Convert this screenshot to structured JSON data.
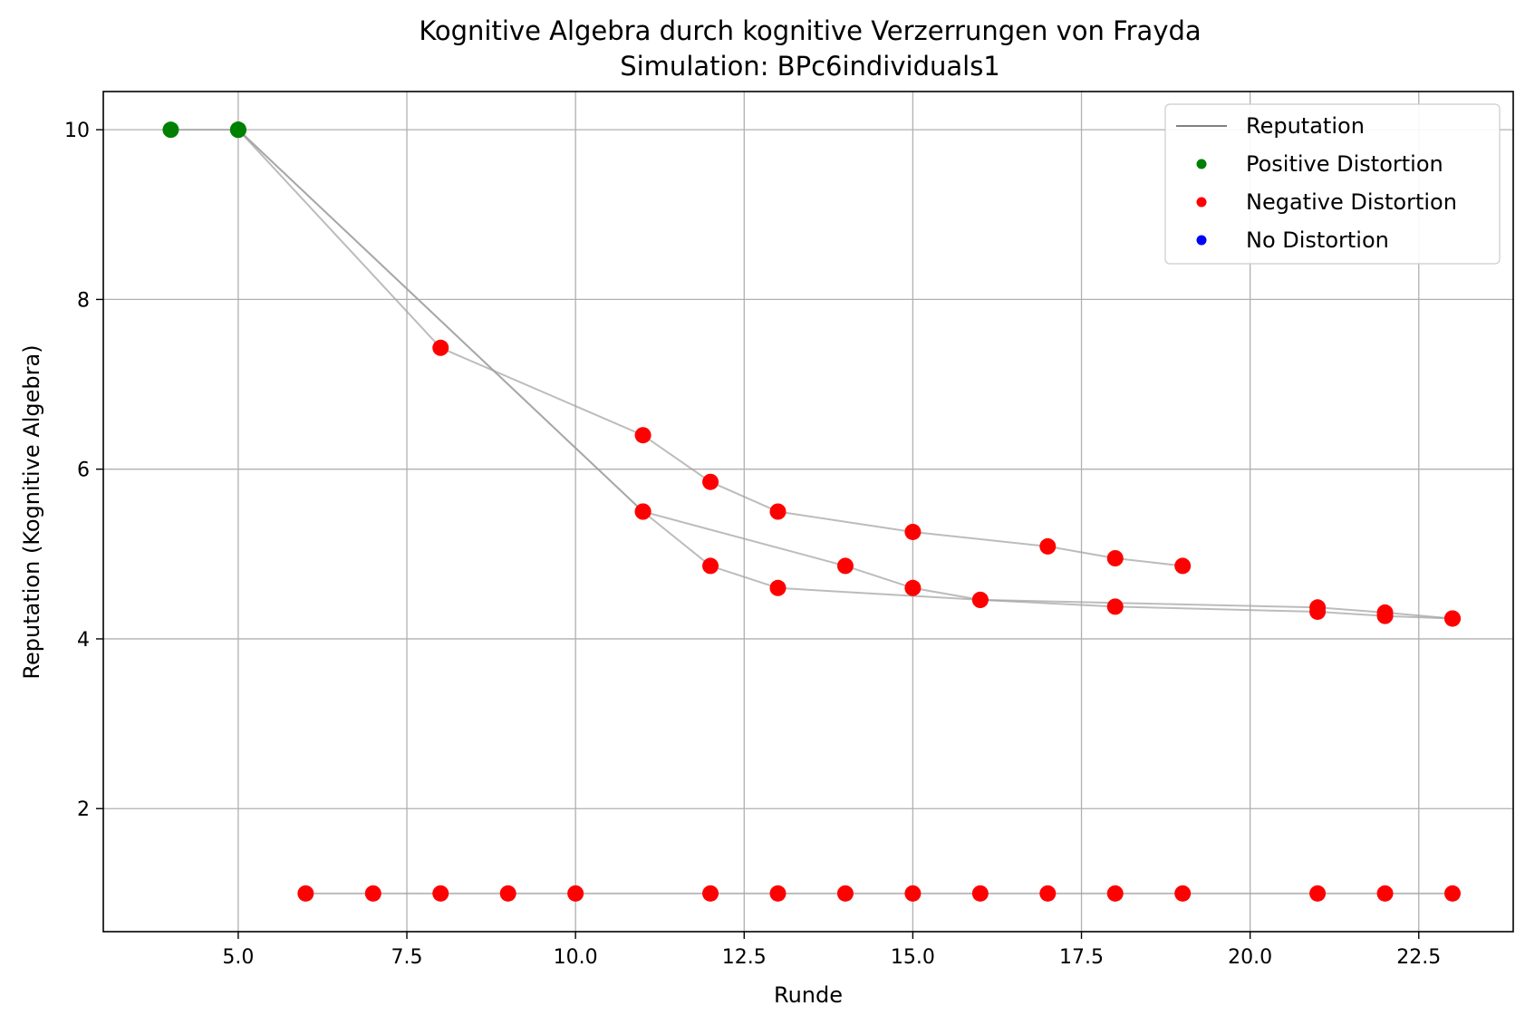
{
  "chart_data": {
    "type": "line",
    "title": "Kognitive Algebra durch kognitive Verzerrungen von Frayda",
    "subtitle": "Simulation: BPc6individuals1",
    "xlabel": "Runde",
    "ylabel": "Reputation (Kognitive Algebra)",
    "xlim": [
      3.0,
      23.9
    ],
    "ylim": [
      0.55,
      10.45
    ],
    "xticks": [
      5.0,
      7.5,
      10.0,
      12.5,
      15.0,
      17.5,
      20.0,
      22.5
    ],
    "xtick_labels": [
      "5.0",
      "7.5",
      "10.0",
      "12.5",
      "15.0",
      "17.5",
      "20.0",
      "22.5"
    ],
    "yticks": [
      2,
      4,
      6,
      8,
      10
    ],
    "ytick_labels": [
      "2",
      "4",
      "6",
      "8",
      "10"
    ],
    "grid": true,
    "legend_position": "top-right",
    "legend": [
      {
        "label": "Reputation",
        "kind": "line",
        "color": "#808080"
      },
      {
        "label": "Positive Distortion",
        "kind": "marker",
        "color": "#008000"
      },
      {
        "label": "Negative Distortion",
        "kind": "marker",
        "color": "#ff0000"
      },
      {
        "label": "No Distortion",
        "kind": "marker",
        "color": "#0000ff"
      }
    ],
    "colors": {
      "line": "#a0a0a0",
      "positive": "#008000",
      "negative": "#ff0000",
      "none": "#0000ff"
    },
    "series": [
      {
        "points": [
          {
            "x": 4,
            "y": 10.0,
            "d": "positive"
          },
          {
            "x": 5,
            "y": 10.0,
            "d": "positive"
          },
          {
            "x": 8,
            "y": 7.43,
            "d": "negative"
          },
          {
            "x": 11,
            "y": 6.4,
            "d": "negative"
          },
          {
            "x": 12,
            "y": 5.85,
            "d": "negative"
          },
          {
            "x": 13,
            "y": 5.5,
            "d": "negative"
          },
          {
            "x": 15,
            "y": 5.26,
            "d": "negative"
          },
          {
            "x": 17,
            "y": 5.09,
            "d": "negative"
          },
          {
            "x": 18,
            "y": 4.95,
            "d": "negative"
          },
          {
            "x": 19,
            "y": 4.86,
            "d": "negative"
          }
        ]
      },
      {
        "points": [
          {
            "x": 5,
            "y": 10.0,
            "d": "positive"
          },
          {
            "x": 11,
            "y": 5.5,
            "d": "negative"
          },
          {
            "x": 14,
            "y": 4.86,
            "d": "negative"
          },
          {
            "x": 15,
            "y": 4.6,
            "d": "negative"
          },
          {
            "x": 16,
            "y": 4.46,
            "d": "negative"
          },
          {
            "x": 21,
            "y": 4.37,
            "d": "negative"
          },
          {
            "x": 22,
            "y": 4.31,
            "d": "negative"
          },
          {
            "x": 23,
            "y": 4.24,
            "d": "negative"
          }
        ]
      },
      {
        "points": [
          {
            "x": 5,
            "y": 10.0,
            "d": "positive"
          },
          {
            "x": 11,
            "y": 5.5,
            "d": "negative"
          },
          {
            "x": 12,
            "y": 4.86,
            "d": "negative"
          },
          {
            "x": 13,
            "y": 4.6,
            "d": "negative"
          },
          {
            "x": 16,
            "y": 4.46,
            "d": "negative"
          },
          {
            "x": 18,
            "y": 4.38,
            "d": "negative"
          },
          {
            "x": 21,
            "y": 4.32,
            "d": "negative"
          },
          {
            "x": 22,
            "y": 4.27,
            "d": "negative"
          },
          {
            "x": 23,
            "y": 4.24,
            "d": "negative"
          }
        ]
      },
      {
        "points": [
          {
            "x": 6,
            "y": 1.0,
            "d": "negative"
          },
          {
            "x": 7,
            "y": 1.0,
            "d": "negative"
          },
          {
            "x": 8,
            "y": 1.0,
            "d": "negative"
          },
          {
            "x": 9,
            "y": 1.0,
            "d": "negative"
          },
          {
            "x": 10,
            "y": 1.0,
            "d": "negative"
          },
          {
            "x": 12,
            "y": 1.0,
            "d": "negative"
          },
          {
            "x": 13,
            "y": 1.0,
            "d": "negative"
          },
          {
            "x": 14,
            "y": 1.0,
            "d": "negative"
          },
          {
            "x": 15,
            "y": 1.0,
            "d": "negative"
          },
          {
            "x": 16,
            "y": 1.0,
            "d": "negative"
          },
          {
            "x": 17,
            "y": 1.0,
            "d": "negative"
          },
          {
            "x": 18,
            "y": 1.0,
            "d": "negative"
          },
          {
            "x": 19,
            "y": 1.0,
            "d": "negative"
          },
          {
            "x": 21,
            "y": 1.0,
            "d": "negative"
          },
          {
            "x": 22,
            "y": 1.0,
            "d": "negative"
          },
          {
            "x": 23,
            "y": 1.0,
            "d": "negative"
          }
        ]
      }
    ]
  }
}
